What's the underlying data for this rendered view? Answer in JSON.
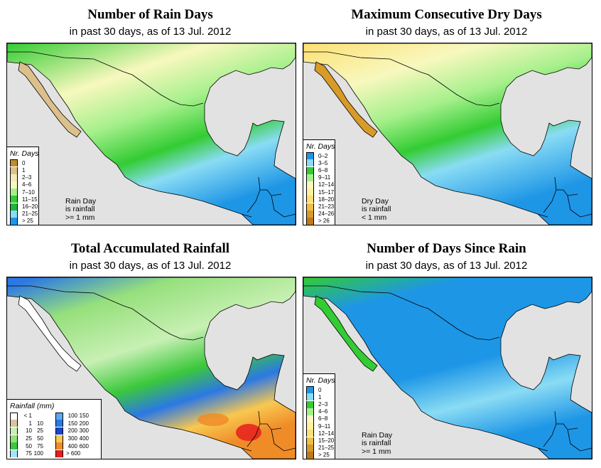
{
  "panels": [
    {
      "title": "Number of Rain Days",
      "subtitle": "in past 30 days, as of  13 Jul. 2012",
      "legend_title": "Nr. Days",
      "legend": [
        {
          "label": "0",
          "color": "#bd8c2e"
        },
        {
          "label": "1",
          "color": "#dcc08c"
        },
        {
          "label": "2–3",
          "color": "#f6e8b8"
        },
        {
          "label": "4–6",
          "color": "#f8f8be"
        },
        {
          "label": "7–10",
          "color": "#a6f08c"
        },
        {
          "label": "11–15",
          "color": "#33cc33"
        },
        {
          "label": "16–20",
          "color": "#1fb43c"
        },
        {
          "label": "21–25",
          "color": "#8adcf4"
        },
        {
          "label": "> 25",
          "color": "#1e96e6"
        }
      ],
      "note": [
        "Rain Day",
        "is rainfall",
        ">= 1 mm"
      ]
    },
    {
      "title": "Maximum Consecutive Dry Days",
      "subtitle": "in past 30 days, as of  13 Jul. 2012",
      "legend_title": "Nr. Days",
      "legend": [
        {
          "label": "0–2",
          "color": "#1e96e6"
        },
        {
          "label": "3–5",
          "color": "#8adcf4"
        },
        {
          "label": "6–8",
          "color": "#33cc33"
        },
        {
          "label": "9–11",
          "color": "#a6f08c"
        },
        {
          "label": "12–14",
          "color": "#f8f8be"
        },
        {
          "label": "15–17",
          "color": "#fff0a0"
        },
        {
          "label": "18–20",
          "color": "#fce072"
        },
        {
          "label": "21–23",
          "color": "#f0c040"
        },
        {
          "label": "24–26",
          "color": "#d89a28"
        },
        {
          "label": "> 26",
          "color": "#bd7a18"
        }
      ],
      "note": [
        "Dry Day",
        "is rainfall",
        "< 1 mm"
      ]
    },
    {
      "title": "Total Accumulated Rainfall",
      "subtitle": "in past 30 days, as of  13 Jul. 2012",
      "legend_title": "Rainfall (mm)",
      "legend_left": [
        {
          "lo": "< 1",
          "hi": "",
          "color": "#ffffff"
        },
        {
          "lo": "1",
          "hi": "10",
          "color": "#d8c4a0"
        },
        {
          "lo": "10",
          "hi": "25",
          "color": "#c8f0b4"
        },
        {
          "lo": "25",
          "hi": "50",
          "color": "#96e07c"
        },
        {
          "lo": "50",
          "hi": "75",
          "color": "#3cc83c"
        },
        {
          "lo": "75",
          "hi": "100",
          "color": "#a4e4f8"
        }
      ],
      "legend_right": [
        {
          "lo": "100",
          "hi": "150",
          "color": "#5aaaf0"
        },
        {
          "lo": "150",
          "hi": "200",
          "color": "#2b78e4"
        },
        {
          "lo": "200",
          "hi": "300",
          "color": "#1846c8"
        },
        {
          "lo": "300",
          "hi": "400",
          "color": "#f8c850"
        },
        {
          "lo": "400",
          "hi": "600",
          "color": "#f08c28"
        },
        {
          "lo": "> 600",
          "hi": "",
          "color": "#e61e1e"
        }
      ]
    },
    {
      "title": "Number of Days Since Rain",
      "subtitle": "in past 30 days, as of  13 Jul. 2012",
      "legend_title": "Nr. Days",
      "legend": [
        {
          "label": "0",
          "color": "#1e96e6"
        },
        {
          "label": "1",
          "color": "#8adcf4"
        },
        {
          "label": "2–3",
          "color": "#33cc33"
        },
        {
          "label": "4–6",
          "color": "#a6f08c"
        },
        {
          "label": "6–8",
          "color": "#f8f8be"
        },
        {
          "label": "9–11",
          "color": "#fff0a0"
        },
        {
          "label": "12–14",
          "color": "#fce072"
        },
        {
          "label": "15–20",
          "color": "#f0c040"
        },
        {
          "label": "21–25",
          "color": "#d89a28"
        },
        {
          "label": "> 25",
          "color": "#bd7a18"
        }
      ],
      "note": [
        "Rain Day",
        "is rainfall",
        ">= 1 mm"
      ]
    }
  ]
}
